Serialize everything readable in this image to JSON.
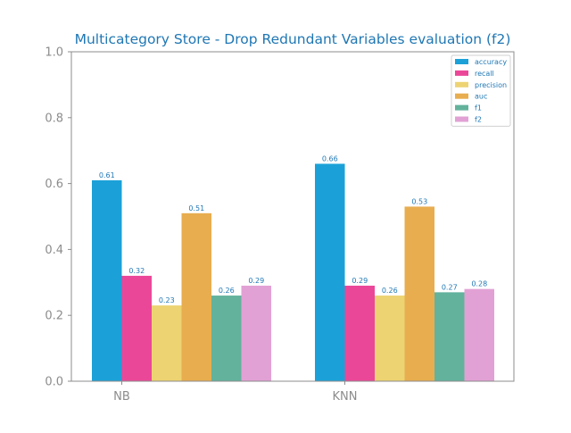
{
  "chart_data": {
    "type": "bar",
    "title": "Multicategory Store - Drop Redundant Variables evaluation (f2)",
    "xlabel": "",
    "ylabel": "",
    "categories": [
      "NB",
      "KNN"
    ],
    "ylim": [
      0,
      1.0
    ],
    "yticks": [
      "0.0",
      "0.2",
      "0.4",
      "0.6",
      "0.8",
      "1.0"
    ],
    "grid": false,
    "legend_position": "top-right",
    "series": [
      {
        "name": "accuracy",
        "color": "#1ba1d8",
        "values": [
          0.61,
          0.66
        ],
        "labels": [
          "0.61",
          "0.66"
        ]
      },
      {
        "name": "recall",
        "color": "#eb4799",
        "values": [
          0.32,
          0.29
        ],
        "labels": [
          "0.32",
          "0.29"
        ]
      },
      {
        "name": "precision",
        "color": "#edd372",
        "values": [
          0.23,
          0.26
        ],
        "labels": [
          "0.23",
          "0.26"
        ]
      },
      {
        "name": "auc",
        "color": "#e8ad4f",
        "values": [
          0.51,
          0.53
        ],
        "labels": [
          "0.51",
          "0.53"
        ]
      },
      {
        "name": "f1",
        "color": "#62b29c",
        "values": [
          0.26,
          0.27
        ],
        "labels": [
          "0.26",
          "0.27"
        ]
      },
      {
        "name": "f2",
        "color": "#e2a1d5",
        "values": [
          0.29,
          0.28
        ],
        "labels": [
          "0.29",
          "0.28"
        ]
      }
    ]
  }
}
